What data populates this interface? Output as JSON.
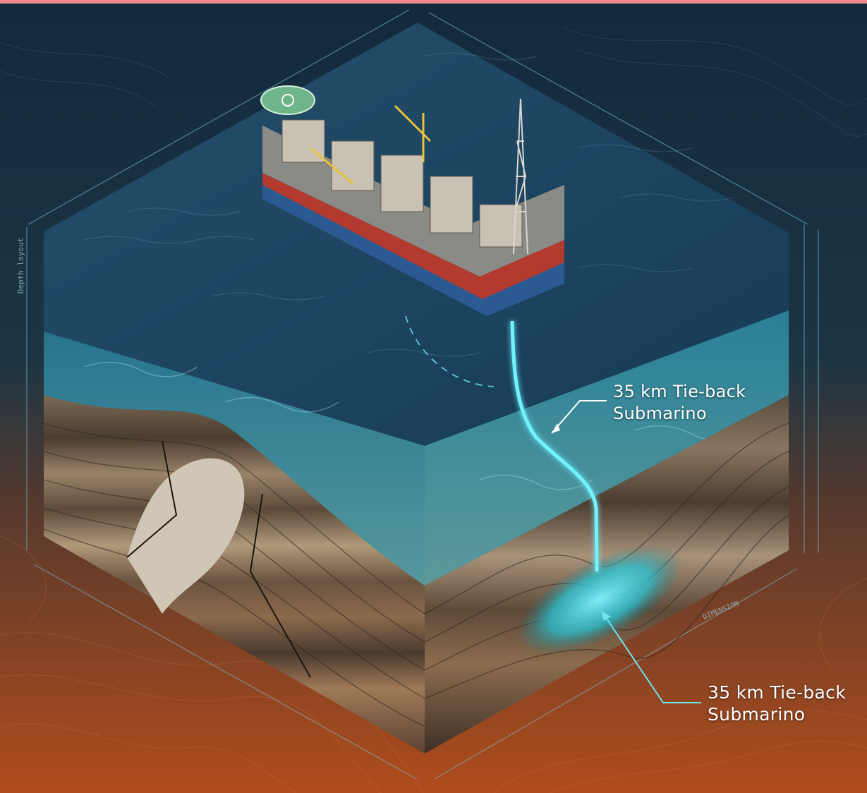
{
  "callouts": {
    "upper": {
      "line1": "35 km Tie-back",
      "line2": "Submarino"
    },
    "lower": {
      "line1": "35 km Tie-back",
      "line2": "Submarino"
    }
  },
  "side_labels": {
    "depth": "Depth layout",
    "dimension": "DIMENSION"
  },
  "colors": {
    "sea": "#1f4a66",
    "water_glow": "#38e0ff",
    "ground_orange": "#a4461c",
    "background_dark": "#10283a",
    "hull_red": "#b23a2e",
    "hull_blue": "#2b5a93"
  },
  "icons": [
    "fpso-vessel",
    "helipad",
    "drilling-derrick",
    "riser-pipeline",
    "reservoir"
  ]
}
